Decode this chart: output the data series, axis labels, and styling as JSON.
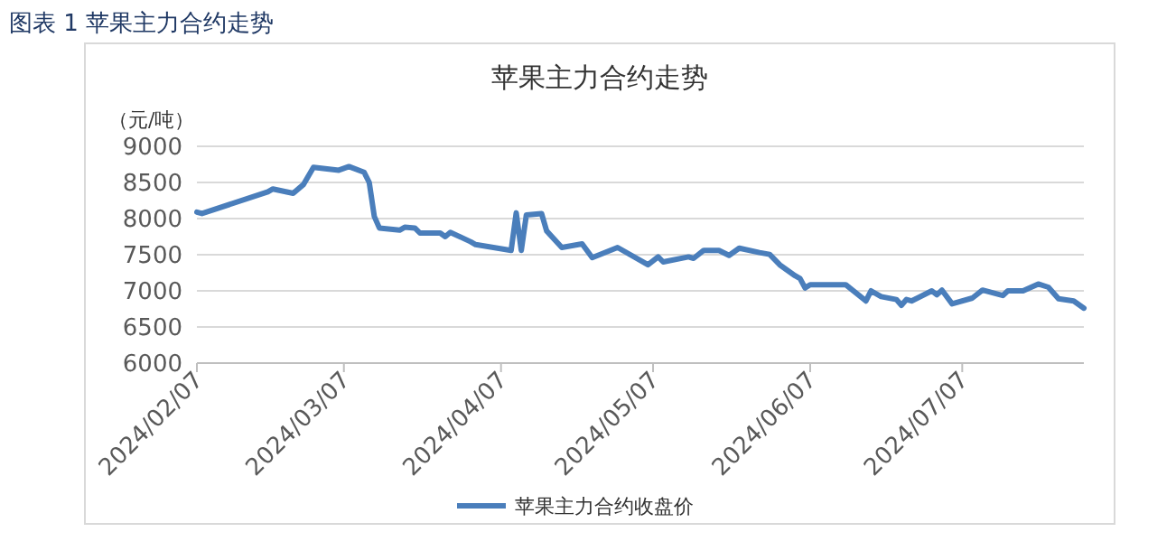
{
  "chart_data": {
    "type": "line",
    "title": "图表 1  苹果主力合约走势",
    "subtitle": "苹果主力合约走势",
    "ylabel": "（元/吨）",
    "x": [
      "2024-02-07",
      "2024-02-08",
      "2024-02-21",
      "2024-02-22",
      "2024-02-26",
      "2024-02-28",
      "2024-03-01",
      "2024-03-06",
      "2024-03-08",
      "2024-03-11",
      "2024-03-12",
      "2024-03-13",
      "2024-03-14",
      "2024-03-18",
      "2024-03-19",
      "2024-03-21",
      "2024-03-22",
      "2024-03-26",
      "2024-03-27",
      "2024-03-28",
      "2024-04-01",
      "2024-04-02",
      "2024-04-09",
      "2024-04-10",
      "2024-04-11",
      "2024-04-12",
      "2024-04-15",
      "2024-04-16",
      "2024-04-19",
      "2024-04-23",
      "2024-04-25",
      "2024-04-30",
      "2024-05-06",
      "2024-05-08",
      "2024-05-09",
      "2024-05-14",
      "2024-05-15",
      "2024-05-17",
      "2024-05-20",
      "2024-05-22",
      "2024-05-24",
      "2024-05-28",
      "2024-05-30",
      "2024-06-01",
      "2024-06-04",
      "2024-06-05",
      "2024-06-06",
      "2024-06-07",
      "2024-06-14",
      "2024-06-18",
      "2024-06-19",
      "2024-06-21",
      "2024-06-24",
      "2024-06-25",
      "2024-06-26",
      "2024-06-27",
      "2024-07-01",
      "2024-07-02",
      "2024-07-03",
      "2024-07-05",
      "2024-07-09",
      "2024-07-11",
      "2024-07-15",
      "2024-07-16",
      "2024-07-19",
      "2024-07-22",
      "2024-07-24",
      "2024-07-26",
      "2024-07-29",
      "2024-07-31"
    ],
    "series": [
      {
        "name": "苹果主力合约收盘价",
        "color": "#4a7ebb",
        "values": [
          8090,
          8070,
          8370,
          8410,
          8350,
          8470,
          8710,
          8670,
          8720,
          8640,
          8500,
          8030,
          7870,
          7840,
          7880,
          7870,
          7800,
          7800,
          7750,
          7810,
          7680,
          7640,
          7560,
          8080,
          7560,
          8050,
          8070,
          7830,
          7600,
          7650,
          7460,
          7600,
          7360,
          7470,
          7400,
          7470,
          7450,
          7560,
          7560,
          7490,
          7590,
          7530,
          7505,
          7360,
          7210,
          7170,
          7040,
          7085,
          7085,
          6860,
          7000,
          6920,
          6880,
          6800,
          6880,
          6860,
          7000,
          6945,
          7010,
          6820,
          6900,
          7010,
          6935,
          7000,
          7000,
          7095,
          7050,
          6890,
          6860,
          6760
        ]
      }
    ],
    "xlim": [
      "2024-02-07",
      "2024-07-31"
    ],
    "xticks": [
      {
        "value": "2024-02-07",
        "label": "2024/02/07"
      },
      {
        "value": "2024-03-07",
        "label": "2024/03/07"
      },
      {
        "value": "2024-04-07",
        "label": "2024/04/07"
      },
      {
        "value": "2024-05-07",
        "label": "2024/05/07"
      },
      {
        "value": "2024-06-07",
        "label": "2024/06/07"
      },
      {
        "value": "2024-07-07",
        "label": "2024/07/07"
      }
    ],
    "ylim": [
      6000,
      9000
    ],
    "yticks": [
      6000,
      6500,
      7000,
      7500,
      8000,
      8500,
      9000
    ],
    "grid": "y",
    "legend": "bottom",
    "marker": "none",
    "line_style": "solid"
  }
}
